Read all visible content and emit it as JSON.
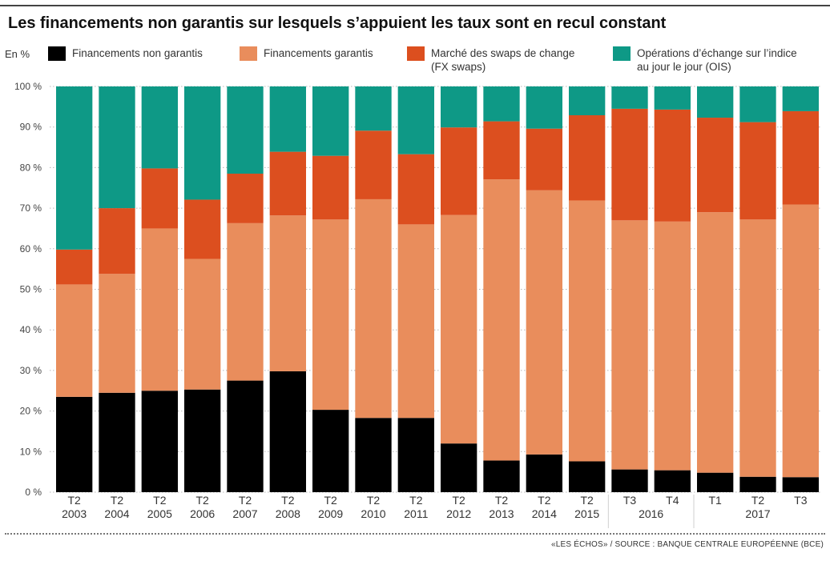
{
  "title": "Les financements non garantis sur lesquels s’appuient les taux sont en recul constant",
  "unit_label": "En %",
  "source": "«LES ÉCHOS» / SOURCE : BANQUE CENTRALE EUROPÉENNE (BCE)",
  "chart_data": {
    "type": "bar",
    "stacked": true,
    "ylabel": "En %",
    "ylim": [
      0,
      100
    ],
    "yticks": [
      "0 %",
      "10 %",
      "20 %",
      "30 %",
      "40 %",
      "50 %",
      "60 %",
      "70 %",
      "80 %",
      "90 %",
      "100 %"
    ],
    "grid": true,
    "legend": "top",
    "categories": [
      {
        "quarter": "T2",
        "year": "2003"
      },
      {
        "quarter": "T2",
        "year": "2004"
      },
      {
        "quarter": "T2",
        "year": "2005"
      },
      {
        "quarter": "T2",
        "year": "2006"
      },
      {
        "quarter": "T2",
        "year": "2007"
      },
      {
        "quarter": "T2",
        "year": "2008"
      },
      {
        "quarter": "T2",
        "year": "2009"
      },
      {
        "quarter": "T2",
        "year": "2010"
      },
      {
        "quarter": "T2",
        "year": "2011"
      },
      {
        "quarter": "T2",
        "year": "2012"
      },
      {
        "quarter": "T2",
        "year": "2013"
      },
      {
        "quarter": "T2",
        "year": "2014"
      },
      {
        "quarter": "T2",
        "year": "2015"
      },
      {
        "quarter": "T3",
        "year": "2016"
      },
      {
        "quarter": "T4",
        "year": "2016"
      },
      {
        "quarter": "T1",
        "year": "2017"
      },
      {
        "quarter": "T2",
        "year": "2017"
      },
      {
        "quarter": "T3",
        "year": "2017"
      }
    ],
    "series": [
      {
        "name": "Financements non garantis",
        "color": "#000000",
        "values": [
          23.5,
          24.5,
          25,
          25.3,
          27.5,
          29.8,
          20.3,
          18.3,
          18.3,
          12,
          7.8,
          9.3,
          7.6,
          5.6,
          5.4,
          4.8,
          3.8,
          3.7
        ]
      },
      {
        "name": "Financements garantis",
        "color": "#E98D5C",
        "values": [
          27.7,
          29.3,
          40,
          32.2,
          38.8,
          38.4,
          46.9,
          53.9,
          47.7,
          56.3,
          69.3,
          65.1,
          64.3,
          61.4,
          61.3,
          64.2,
          63.4,
          67.2
        ]
      },
      {
        "name": "Marché des swaps de change\n(FX swaps)",
        "color": "#DC4F1F",
        "values": [
          8.6,
          16.2,
          14.8,
          14.6,
          12.2,
          15.7,
          15.7,
          16.9,
          17.3,
          21.6,
          14.3,
          15.2,
          21,
          27.5,
          27.6,
          23.3,
          24,
          23
        ]
      },
      {
        "name": "Opérations d’échange sur l’indice\nau jour le jour (OIS)",
        "color": "#0E9986",
        "values": [
          40.2,
          30,
          20.2,
          27.9,
          21.5,
          16.1,
          17.1,
          10.9,
          16.7,
          10.1,
          8.6,
          10.4,
          7.1,
          5.5,
          5.7,
          7.7,
          8.8,
          6.1
        ]
      }
    ]
  }
}
